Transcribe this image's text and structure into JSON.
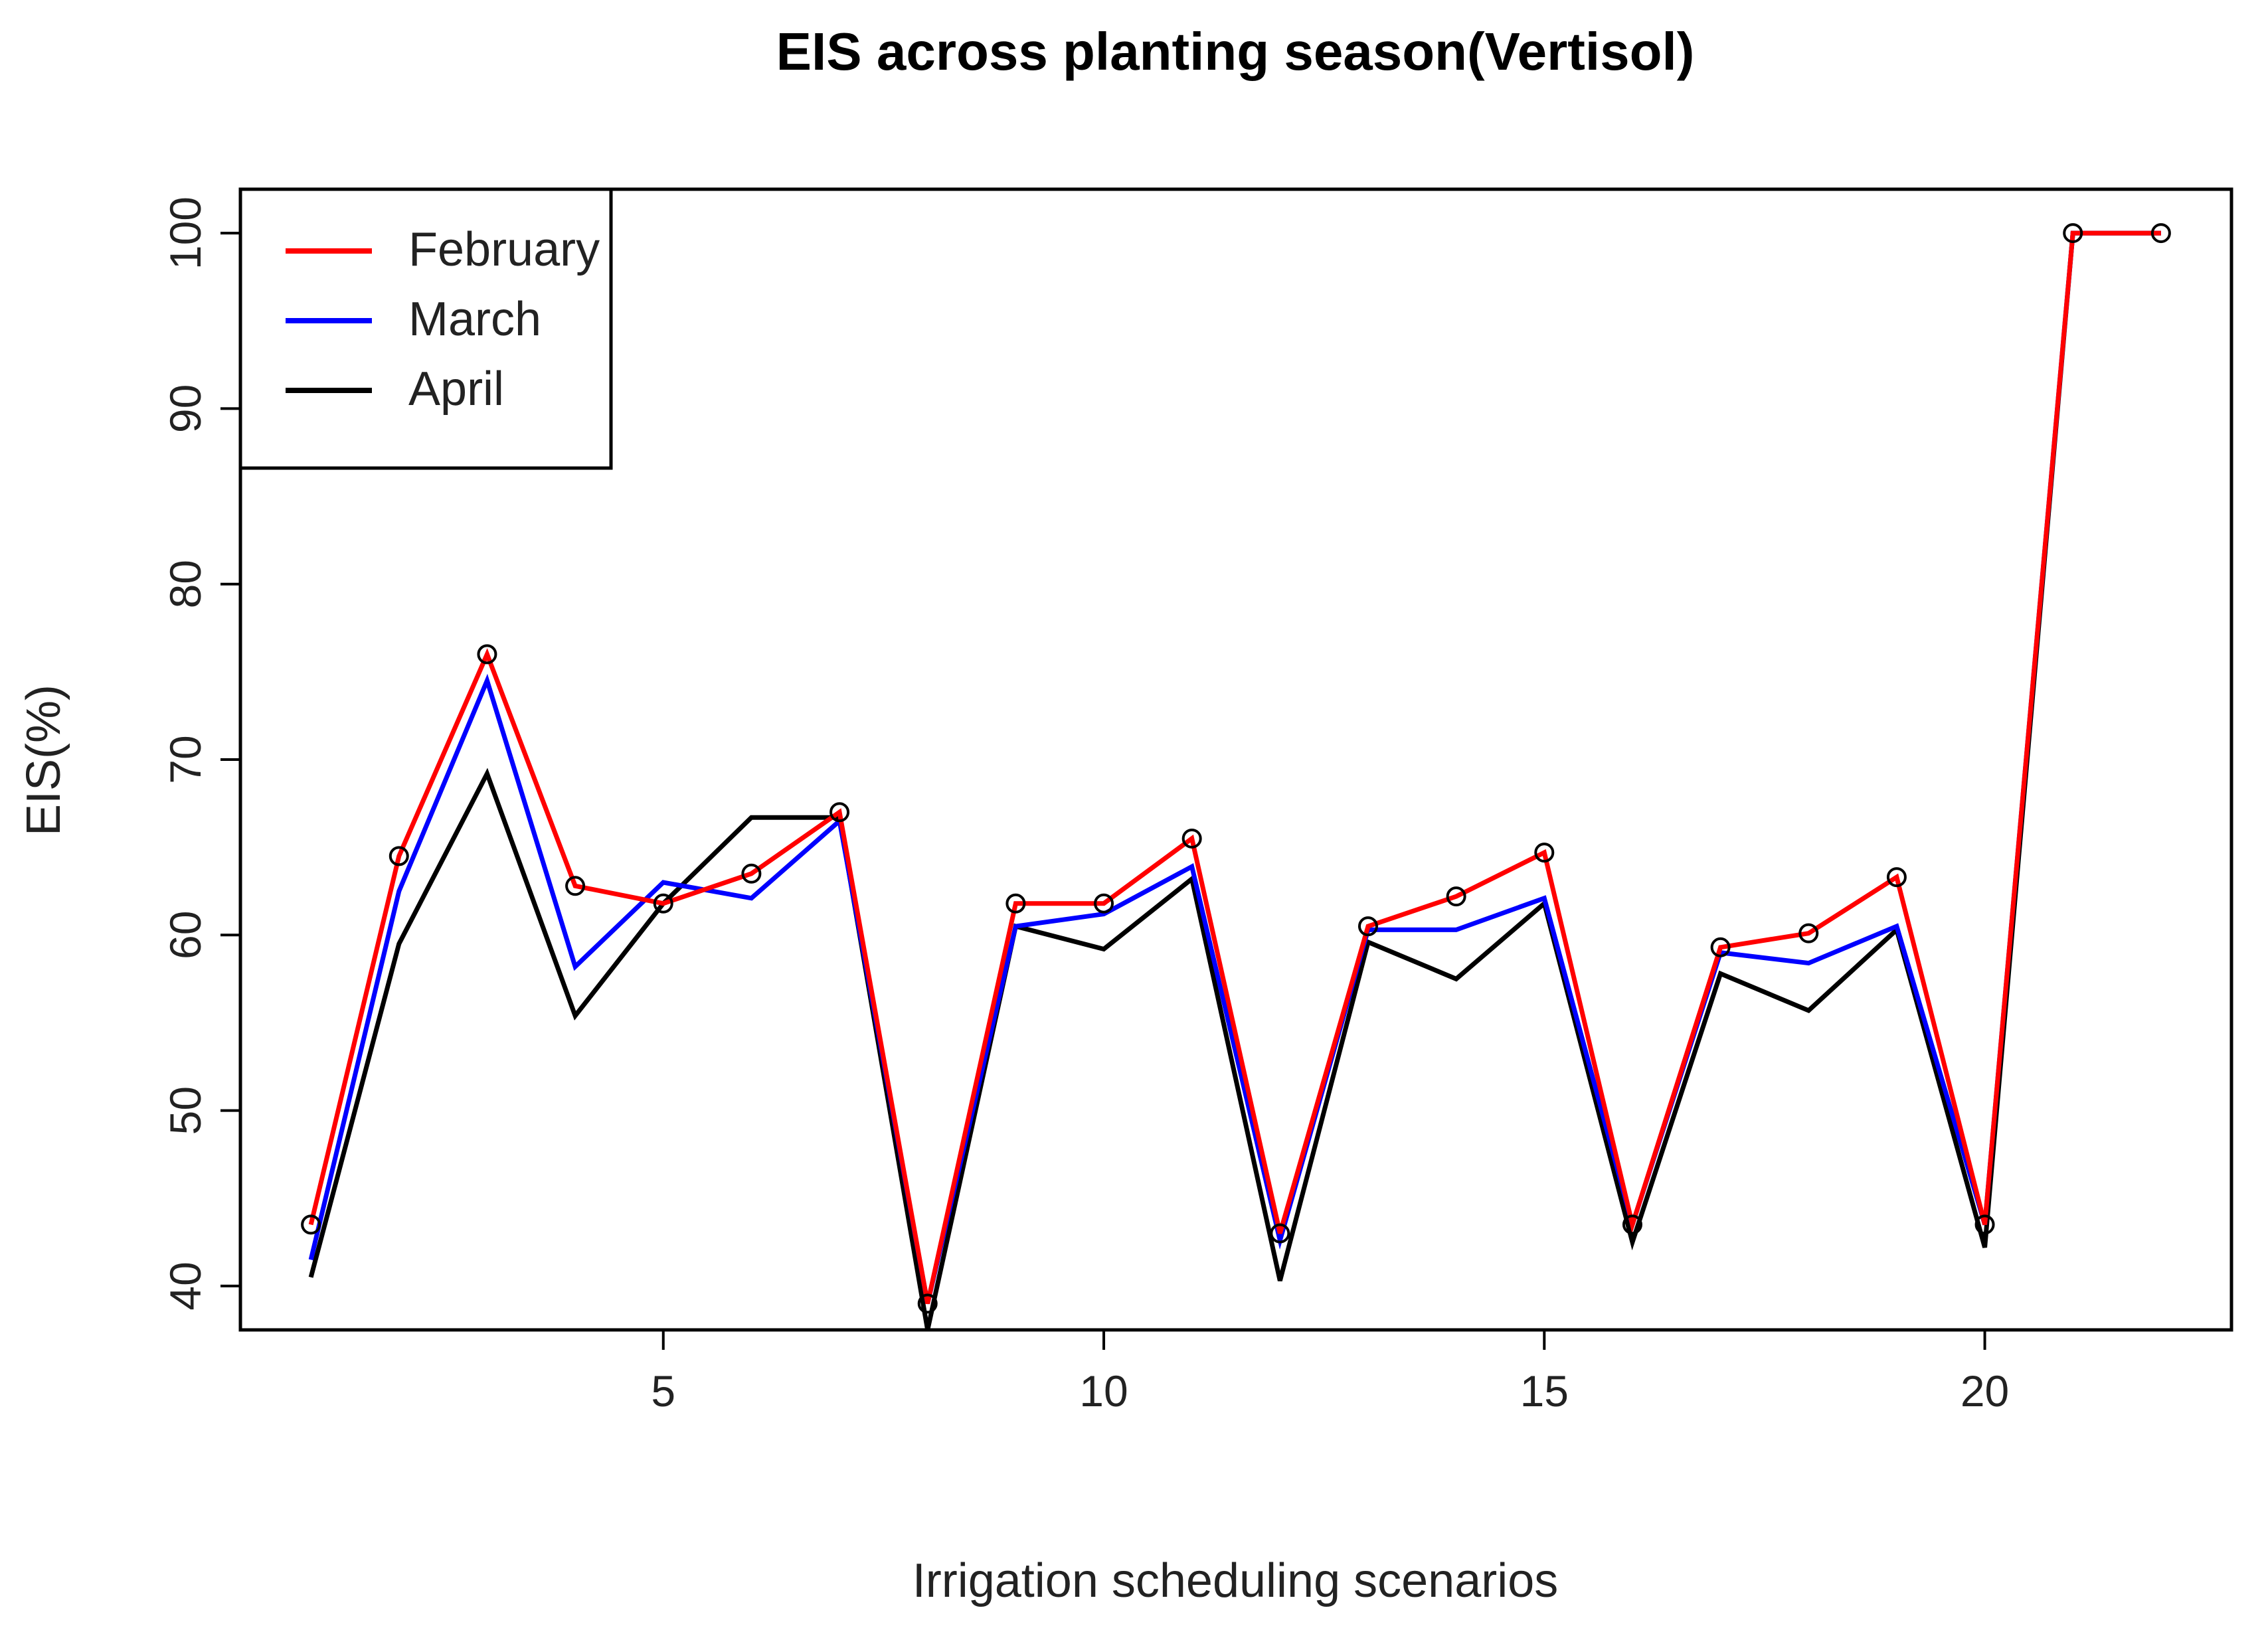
{
  "chart_data": {
    "type": "line",
    "title": "EIS across planting season(Vertisol)",
    "xlabel": "Irrigation scheduling scenarios",
    "ylabel": "EIS(%)",
    "xlim": [
      0.2,
      22.8
    ],
    "ylim": [
      37.5,
      102.5
    ],
    "x_ticks": [
      5,
      10,
      15,
      20
    ],
    "y_ticks": [
      40,
      50,
      60,
      70,
      80,
      90,
      100
    ],
    "x": [
      1,
      2,
      3,
      4,
      5,
      6,
      7,
      8,
      9,
      10,
      11,
      12,
      13,
      14,
      15,
      16,
      17,
      18,
      19,
      20,
      21,
      22
    ],
    "legend_position": "top-left",
    "series": [
      {
        "name": "February",
        "color": "#ff0000",
        "markers": true,
        "values": [
          43.5,
          64.5,
          76,
          62.8,
          61.8,
          63.5,
          67,
          39,
          61.8,
          61.8,
          65.5,
          43,
          60.5,
          62.2,
          64.7,
          43.5,
          59.3,
          60.1,
          63.3,
          43.5,
          100,
          100
        ]
      },
      {
        "name": "March",
        "color": "#0000ff",
        "markers": false,
        "values": [
          41.5,
          62.5,
          74.5,
          58.2,
          63,
          62.1,
          66.5,
          39,
          60.5,
          61.2,
          63.9,
          42.6,
          60.3,
          60.3,
          62.1,
          43.5,
          59,
          58.4,
          60.5,
          43.5,
          100,
          100
        ]
      },
      {
        "name": "April",
        "color": "#000000",
        "markers": false,
        "values": [
          40.5,
          59.5,
          69.2,
          55.4,
          61.8,
          66.7,
          66.7,
          37.5,
          60.5,
          59.2,
          63.2,
          40.3,
          59.6,
          57.5,
          61.8,
          42.5,
          57.8,
          55.7,
          60.3,
          42.2,
          100,
          100
        ]
      }
    ]
  }
}
